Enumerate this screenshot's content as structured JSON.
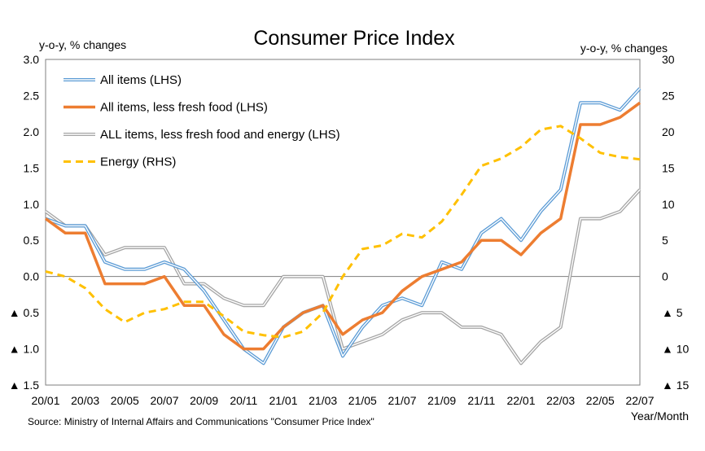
{
  "chart_data": {
    "type": "line",
    "title": "Consumer Price Index",
    "ylabel_left": "y-o-y, % changes",
    "ylabel_right": "y-o-y, % changes",
    "xlabel": "Year/Month",
    "source": "Source: Ministry of Internal Affairs and Communications \"Consumer Price Index\"",
    "ylim_left": [
      -1.5,
      3.0
    ],
    "ylim_right": [
      -15,
      30
    ],
    "left_ticks": [
      {
        "v": 3.0,
        "label": "3.0"
      },
      {
        "v": 2.5,
        "label": "2.5"
      },
      {
        "v": 2.0,
        "label": "2.0"
      },
      {
        "v": 1.5,
        "label": "1.5"
      },
      {
        "v": 1.0,
        "label": "1.0"
      },
      {
        "v": 0.5,
        "label": "0.5"
      },
      {
        "v": 0.0,
        "label": "0.0"
      },
      {
        "v": -0.5,
        "label": "▲ 0.5"
      },
      {
        "v": -1.0,
        "label": "▲ 1.0"
      },
      {
        "v": -1.5,
        "label": "▲ 1.5"
      }
    ],
    "right_ticks": [
      {
        "v": 30,
        "label": "30"
      },
      {
        "v": 25,
        "label": "25"
      },
      {
        "v": 20,
        "label": "20"
      },
      {
        "v": 15,
        "label": "15"
      },
      {
        "v": 10,
        "label": "10"
      },
      {
        "v": 5,
        "label": "5"
      },
      {
        "v": 0,
        "label": "0"
      },
      {
        "v": -5,
        "label": "▲ 5"
      },
      {
        "v": -10,
        "label": "▲ 10"
      },
      {
        "v": -15,
        "label": "▲ 15"
      }
    ],
    "x": [
      "20/01",
      "20/02",
      "20/03",
      "20/04",
      "20/05",
      "20/06",
      "20/07",
      "20/08",
      "20/09",
      "20/10",
      "20/11",
      "20/12",
      "21/01",
      "21/02",
      "21/03",
      "21/04",
      "21/05",
      "21/06",
      "21/07",
      "21/08",
      "21/09",
      "21/10",
      "21/11",
      "21/12",
      "22/01",
      "22/02",
      "22/03",
      "22/04",
      "22/05",
      "22/06",
      "22/07"
    ],
    "x_tick_labels": [
      "20/01",
      "20/03",
      "20/05",
      "20/07",
      "20/09",
      "20/11",
      "21/01",
      "21/03",
      "21/05",
      "21/07",
      "21/09",
      "21/11",
      "22/01",
      "22/03",
      "22/05",
      "22/07"
    ],
    "legend_position": "top-left",
    "series": [
      {
        "name": "All items (LHS)",
        "axis": "left",
        "style": "double",
        "color": "#5b9bd5",
        "values": [
          0.8,
          0.7,
          0.7,
          0.2,
          0.1,
          0.1,
          0.2,
          0.1,
          -0.2,
          -0.6,
          -1.0,
          -1.2,
          -0.7,
          -0.5,
          -0.4,
          -1.1,
          -0.7,
          -0.4,
          -0.3,
          -0.4,
          0.2,
          0.1,
          0.6,
          0.8,
          0.5,
          0.9,
          1.2,
          2.4,
          2.4,
          2.3,
          2.6
        ]
      },
      {
        "name": "All items, less fresh food (LHS)",
        "axis": "left",
        "style": "solid",
        "color": "#ed7d31",
        "values": [
          0.8,
          0.6,
          0.6,
          -0.1,
          -0.1,
          -0.1,
          0.0,
          -0.4,
          -0.4,
          -0.8,
          -1.0,
          -1.0,
          -0.7,
          -0.5,
          -0.4,
          -0.8,
          -0.6,
          -0.5,
          -0.2,
          0.0,
          0.1,
          0.2,
          0.5,
          0.5,
          0.3,
          0.6,
          0.8,
          2.1,
          2.1,
          2.2,
          2.4
        ]
      },
      {
        "name": "ALL items, less fresh food and energy (LHS)",
        "axis": "left",
        "style": "double",
        "color": "#a5a5a5",
        "values": [
          0.9,
          0.7,
          0.7,
          0.3,
          0.4,
          0.4,
          0.4,
          -0.1,
          -0.1,
          -0.3,
          -0.4,
          -0.4,
          0.0,
          0.0,
          0.0,
          -1.0,
          -0.9,
          -0.8,
          -0.6,
          -0.5,
          -0.5,
          -0.7,
          -0.7,
          -0.8,
          -1.2,
          -0.9,
          -0.7,
          0.8,
          0.8,
          0.9,
          1.2
        ]
      },
      {
        "name": "Energy (RHS)",
        "axis": "right",
        "style": "dashed",
        "color": "#ffc000",
        "values": [
          0.7,
          0.0,
          -1.6,
          -4.5,
          -6.3,
          -5.0,
          -4.5,
          -3.5,
          -3.5,
          -5.5,
          -7.6,
          -8.1,
          -8.4,
          -7.6,
          -5.0,
          0.0,
          3.8,
          4.3,
          5.9,
          5.4,
          7.6,
          11.3,
          15.3,
          16.3,
          17.9,
          20.3,
          20.8,
          19.1,
          17.1,
          16.5,
          16.2
        ]
      }
    ]
  }
}
